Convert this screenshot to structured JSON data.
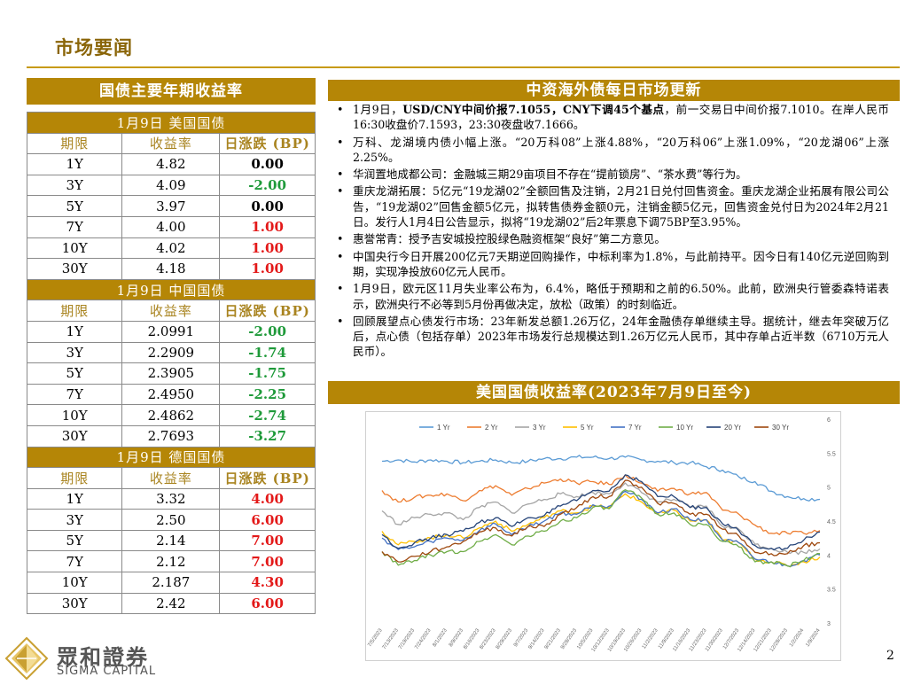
{
  "header": {
    "title": "市场要闻"
  },
  "yields": {
    "banner": "国债主要年期收益率",
    "columns": [
      "期限",
      "收益率",
      "日涨跌 (BP)"
    ],
    "groups": [
      {
        "title": "1月9日  美国国债",
        "rows": [
          [
            "1Y",
            "4.82",
            "0.00"
          ],
          [
            "3Y",
            "4.09",
            "-2.00"
          ],
          [
            "5Y",
            "3.97",
            "0.00"
          ],
          [
            "7Y",
            "4.00",
            "1.00"
          ],
          [
            "10Y",
            "4.02",
            "1.00"
          ],
          [
            "30Y",
            "4.18",
            "1.00"
          ]
        ]
      },
      {
        "title": "1月9日  中国国债",
        "rows": [
          [
            "1Y",
            "2.0991",
            "-2.00"
          ],
          [
            "3Y",
            "2.2909",
            "-1.74"
          ],
          [
            "5Y",
            "2.3905",
            "-1.75"
          ],
          [
            "7Y",
            "2.4950",
            "-2.25"
          ],
          [
            "10Y",
            "2.4862",
            "-2.74"
          ],
          [
            "30Y",
            "2.7693",
            "-3.27"
          ]
        ]
      },
      {
        "title": "1月9日  德国国债",
        "rows": [
          [
            "1Y",
            "3.32",
            "4.00"
          ],
          [
            "3Y",
            "2.50",
            "6.00"
          ],
          [
            "5Y",
            "2.14",
            "7.00"
          ],
          [
            "7Y",
            "2.12",
            "7.00"
          ],
          [
            "10Y",
            "2.187",
            "4.30"
          ],
          [
            "30Y",
            "2.42",
            "6.00"
          ]
        ]
      }
    ]
  },
  "news": {
    "banner": "中资海外债每日市场更新",
    "items": [
      {
        "pre": "1月9日，",
        "bold": "USD/CNY中间价报7.1055，CNY下调45个基点",
        "post": "，前一交易日中间价报7.1010。在岸人民币16:30收盘价7.1593，23:30夜盘收7.1666。"
      },
      {
        "pre": "",
        "bold": "",
        "post": "万科、龙湖境内债小幅上涨。“20万科08”上涨4.88%，“20万科06”上涨1.09%，“20龙湖06”上涨2.25%。"
      },
      {
        "pre": "",
        "bold": "",
        "post": "华润置地成都公司：金融城三期29亩项目不存在“提前锁房”、“茶水费”等行为。"
      },
      {
        "pre": "",
        "bold": "",
        "post": "重庆龙湖拓展：5亿元“19龙湖02”全额回售及注销，2月21日兑付回售资金。重庆龙湖企业拓展有限公司公告，“19龙湖02”回售金额5亿元，拟转售债券金额0元，注销金额5亿元，回售资金兑付日为2024年2月21日。发行人1月4日公告显示，拟将“19龙湖02”后2年票息下调75BP至3.95%。"
      },
      {
        "pre": "",
        "bold": "",
        "post": "惠誉常青：授予吉安城投控股绿色融资框架“良好”第二方意见。"
      },
      {
        "pre": "",
        "bold": "",
        "post": "中国央行今日开展200亿元7天期逆回购操作，中标利率为1.8%，与此前持平。因今日有140亿元逆回购到期，实现净投放60亿元人民币。"
      },
      {
        "pre": "",
        "bold": "",
        "post": "1月9日，欧元区11月失业率公布为，6.4%，略低于预期和之前的6.50%。此前，欧洲央行管委森特诺表示，欧洲央行不必等到5月份再做决定，放松（政策）的时刻临近。"
      },
      {
        "pre": "",
        "bold": "",
        "post": "回顾展望点心债发行市场：23年新发总额1.26万亿，24年金融债存单继续主导。据统计，继去年突破万亿后，点心债（包括存单）2023年市场发行总规模达到1.26万亿元人民币，其中存单占近半数（6710万元人民币）。"
      }
    ]
  },
  "chart_section": {
    "banner": "美国国债收益率(2023年7月9日至今)"
  },
  "chart_data": {
    "type": "line",
    "title": "",
    "legend_position": "top",
    "y_axis": {
      "side": "right",
      "min": 3,
      "max": 6,
      "ticks": [
        "3",
        "3.5",
        "4",
        "4.5",
        "5",
        "5.5",
        "6"
      ]
    },
    "x_ticks": [
      "7/5/2023",
      "7/13/2023",
      "7/19/2023",
      "7/24/2023",
      "8/1/2023",
      "8/9/2023",
      "8/16/2023",
      "8/23/2023",
      "8/29/2023",
      "9/7/2023",
      "9/14/2023",
      "9/21/2023",
      "9/28/2023",
      "10/5/2023",
      "10/12/2023",
      "10/19/2023",
      "10/26/2023",
      "11/2/2023",
      "11/9/2023",
      "11/16/2023",
      "11/23/2023",
      "11/30/2023",
      "12/7/2023",
      "12/14/2023",
      "12/21/2023",
      "12/28/2023",
      "1/2/2024",
      "1/9/2024"
    ],
    "series": [
      {
        "name": "1 Yr",
        "color": "#5b9bd5",
        "values": [
          5.38,
          5.4,
          5.37,
          5.4,
          5.38,
          5.36,
          5.38,
          5.4,
          5.36,
          5.38,
          5.42,
          5.42,
          5.44,
          5.44,
          5.42,
          5.44,
          5.4,
          5.38,
          5.36,
          5.36,
          5.3,
          5.25,
          5.15,
          5.08,
          4.94,
          4.86,
          4.83,
          4.82
        ]
      },
      {
        "name": "2 Yr",
        "color": "#ed7d31",
        "values": [
          4.95,
          4.78,
          4.85,
          4.88,
          4.9,
          4.8,
          4.95,
          5.02,
          4.88,
          4.98,
          5.06,
          5.12,
          5.06,
          5.08,
          5.04,
          5.18,
          5.06,
          4.94,
          4.98,
          4.9,
          4.92,
          4.66,
          4.6,
          4.44,
          4.32,
          4.32,
          4.32,
          4.36
        ]
      },
      {
        "name": "3 Yr",
        "color": "#a5a5a5",
        "values": [
          4.65,
          4.45,
          4.55,
          4.6,
          4.62,
          4.52,
          4.7,
          4.78,
          4.62,
          4.75,
          4.82,
          4.9,
          4.86,
          4.92,
          4.9,
          5.06,
          4.92,
          4.78,
          4.82,
          4.7,
          4.72,
          4.42,
          4.38,
          4.16,
          4.1,
          4.04,
          4.04,
          4.09
        ]
      },
      {
        "name": "5 Yr",
        "color": "#ffc000",
        "values": [
          4.35,
          4.15,
          4.2,
          4.25,
          4.3,
          4.25,
          4.4,
          4.5,
          4.35,
          4.45,
          4.55,
          4.65,
          4.62,
          4.72,
          4.7,
          4.9,
          4.78,
          4.6,
          4.66,
          4.5,
          4.52,
          4.22,
          4.18,
          3.94,
          3.9,
          3.84,
          3.9,
          3.97
        ]
      },
      {
        "name": "7 Yr",
        "color": "#4472c4",
        "values": [
          4.25,
          4.08,
          4.12,
          4.2,
          4.25,
          4.22,
          4.36,
          4.46,
          4.3,
          4.42,
          4.5,
          4.62,
          4.6,
          4.74,
          4.72,
          4.94,
          4.82,
          4.62,
          4.68,
          4.52,
          4.52,
          4.22,
          4.18,
          3.94,
          3.9,
          3.84,
          3.92,
          4.0
        ]
      },
      {
        "name": "10 Yr",
        "color": "#70ad47",
        "values": [
          4.05,
          3.85,
          3.92,
          4.0,
          4.05,
          4.05,
          4.2,
          4.3,
          4.15,
          4.28,
          4.35,
          4.5,
          4.55,
          4.7,
          4.68,
          4.96,
          4.84,
          4.6,
          4.62,
          4.45,
          4.45,
          4.2,
          4.12,
          3.9,
          3.9,
          3.84,
          3.92,
          4.02
        ]
      },
      {
        "name": "20 Yr",
        "color": "#264478",
        "values": [
          4.3,
          4.1,
          4.18,
          4.25,
          4.3,
          4.35,
          4.48,
          4.55,
          4.42,
          4.55,
          4.58,
          4.72,
          4.8,
          4.95,
          4.94,
          5.18,
          5.08,
          4.86,
          4.86,
          4.7,
          4.7,
          4.46,
          4.36,
          4.14,
          4.1,
          4.1,
          4.22,
          4.34
        ]
      },
      {
        "name": "30 Yr",
        "color": "#9e480e",
        "values": [
          4.05,
          3.9,
          3.98,
          4.05,
          4.12,
          4.2,
          4.34,
          4.4,
          4.28,
          4.42,
          4.42,
          4.6,
          4.7,
          4.86,
          4.86,
          5.1,
          5.0,
          4.76,
          4.76,
          4.6,
          4.6,
          4.38,
          4.28,
          4.04,
          4.02,
          4.02,
          4.14,
          4.18
        ]
      }
    ]
  },
  "footer": {
    "logo_cn": "眾和證券",
    "logo_en": "SIGMA CAPITAL",
    "page_number": "2"
  },
  "colors": {
    "gold": "#b58606",
    "title_gold": "#8a6508",
    "positive": "#e31919",
    "negative": "#1f9a3a"
  }
}
